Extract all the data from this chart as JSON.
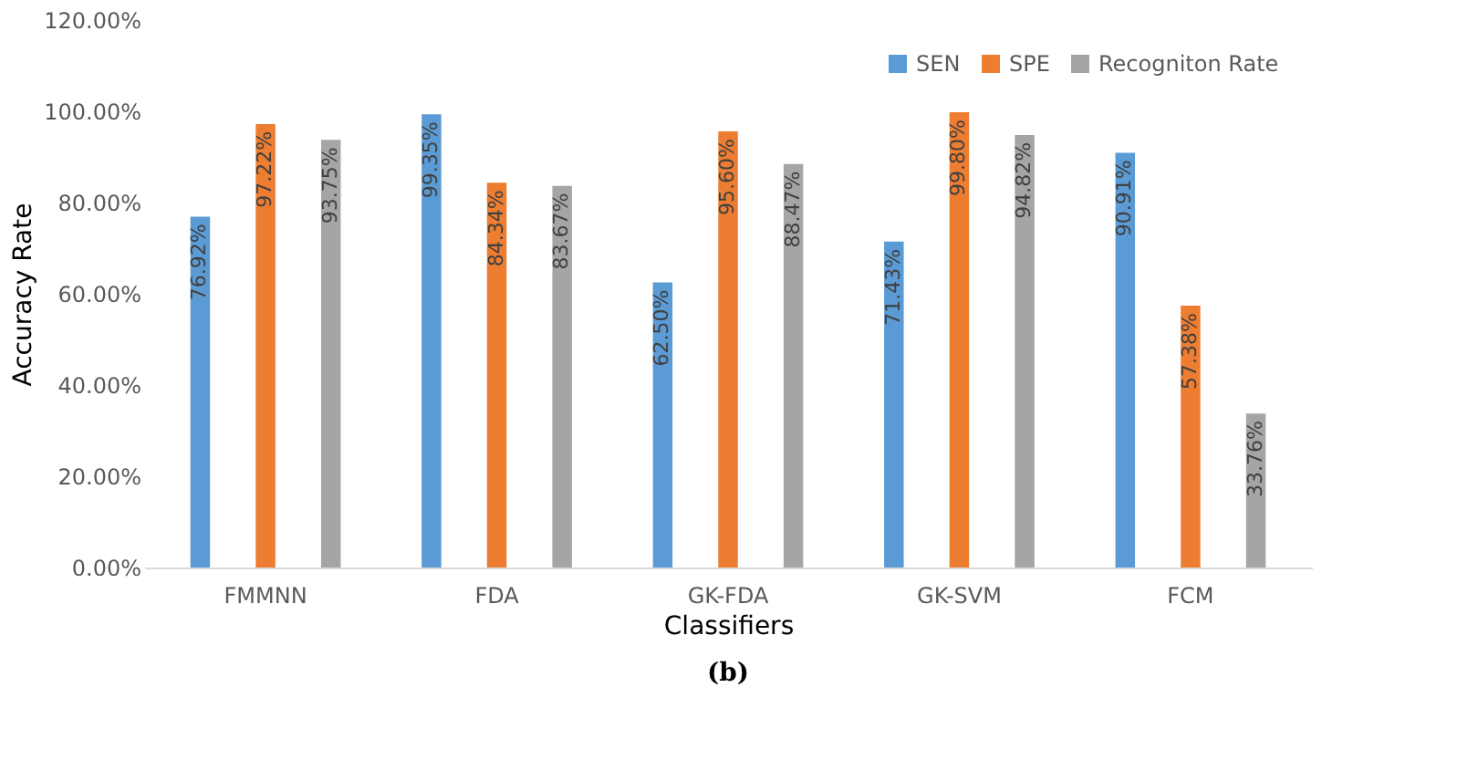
{
  "chart_data": {
    "type": "bar",
    "xlabel": "Classifiers",
    "ylabel": "Accuracy Rate",
    "categories": [
      "FMMNN",
      "FDA",
      "GK-FDA",
      "GK-SVM",
      "FCM"
    ],
    "series": [
      {
        "name": "SEN",
        "color": "#5b9bd5",
        "values": [
          76.92,
          99.35,
          62.5,
          71.43,
          90.91
        ],
        "value_labels": [
          "76.92%",
          "99.35%",
          "62.50%",
          "71.43%",
          "90.91%"
        ]
      },
      {
        "name": "SPE",
        "color": "#ed7d31",
        "values": [
          97.22,
          84.34,
          95.6,
          99.8,
          57.38
        ],
        "value_labels": [
          "97.22%",
          "84.34%",
          "95.60%",
          "99.80%",
          "57.38%"
        ]
      },
      {
        "name": "Recogniton Rate",
        "color": "#a5a5a5",
        "values": [
          93.75,
          83.67,
          88.47,
          94.82,
          33.76
        ],
        "value_labels": [
          "93.75%",
          "83.67%",
          "88.47%",
          "94.82%",
          "33.76%"
        ]
      }
    ],
    "ylim": [
      0,
      120
    ],
    "yticks": [
      {
        "value": 0,
        "label": "0.00%"
      },
      {
        "value": 20,
        "label": "20.00%"
      },
      {
        "value": 40,
        "label": "40.00%"
      },
      {
        "value": 60,
        "label": "60.00%"
      },
      {
        "value": 80,
        "label": "80.00%"
      },
      {
        "value": 100,
        "label": "100.00%"
      },
      {
        "value": 120,
        "label": "120.00%"
      }
    ],
    "grid": false,
    "legend": "top right",
    "annotations": [
      "(b)"
    ]
  }
}
